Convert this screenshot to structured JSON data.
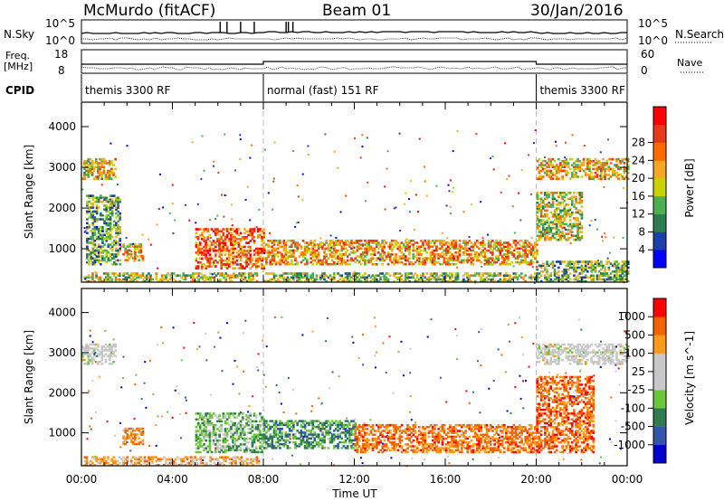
{
  "header": {
    "station": "McMurdo (fitACF)",
    "beam": "Beam 01",
    "date": "30/Jan/2016"
  },
  "aux": {
    "nsky_label": "N.Sky",
    "nsky_top": "10^5",
    "nsky_bottom": "10^0",
    "nsearch_label": "N.Search",
    "nsearch_top": "10^5",
    "nsearch_bottom": "10^0",
    "freq_label_top": "Freq.",
    "freq_label_unit": "[MHz]",
    "freq_top": "18",
    "freq_bottom": "8",
    "nave_label": "Nave",
    "nave_top": "60",
    "nave_bottom": "0",
    "cpid_label": "CPID",
    "cpid_segments": [
      {
        "label": "themis 3300 RF",
        "start": 0,
        "end": 8
      },
      {
        "label": "normal (fast) 151 RF",
        "start": 8,
        "end": 20
      },
      {
        "label": "themis 3300 RF",
        "start": 20,
        "end": 24
      }
    ]
  },
  "colors": {
    "power": [
      "#0000ff",
      "#1f3fa8",
      "#2e7d4f",
      "#4caf50",
      "#c8d200",
      "#f5a623",
      "#ff6a00",
      "#e8391a",
      "#ff0000"
    ],
    "velocity": [
      "#ff0000",
      "#f06400",
      "#ff9a1a",
      "#c8c8c8",
      "#c8c8c8",
      "#6cc63c",
      "#2e7d4f",
      "#3355aa",
      "#0000cc"
    ],
    "ground_scatter": "#bebebe"
  },
  "chart_data": [
    {
      "type": "heatmap",
      "panel": "power",
      "xlabel": "",
      "ylabel": "Slant Range [km]",
      "xlim": [
        0,
        24
      ],
      "ylim": [
        180,
        4600
      ],
      "yticks": [
        1000,
        2000,
        3000,
        4000
      ],
      "ytick_labels": [
        "1000",
        "2000",
        "3000",
        "4000"
      ],
      "colorbar": {
        "label": "Power [dB]",
        "range": [
          0,
          32
        ],
        "ticks": [
          4,
          8,
          12,
          16,
          20,
          24,
          28
        ],
        "tick_labels": [
          "4",
          "8",
          "12",
          "16",
          "20",
          "24",
          "28"
        ]
      },
      "regions": [
        {
          "t0": 0.0,
          "t1": 1.5,
          "r0": 2700,
          "r1": 3200,
          "level": 0.55
        },
        {
          "t0": 0.1,
          "t1": 7.8,
          "r0": 180,
          "r1": 380,
          "level": 0.5
        },
        {
          "t0": 0.2,
          "t1": 1.7,
          "r0": 600,
          "r1": 2300,
          "level": 0.35
        },
        {
          "t0": 1.8,
          "t1": 2.7,
          "r0": 700,
          "r1": 1100,
          "level": 0.55
        },
        {
          "t0": 5.0,
          "t1": 8.0,
          "r0": 500,
          "r1": 1500,
          "level": 0.75
        },
        {
          "t0": 8.0,
          "t1": 20.0,
          "r0": 600,
          "r1": 1200,
          "level": 0.65
        },
        {
          "t0": 8.0,
          "t1": 20.0,
          "r0": 180,
          "r1": 400,
          "level": 0.45
        },
        {
          "t0": 20.0,
          "t1": 24.0,
          "r0": 2700,
          "r1": 3200,
          "level": 0.6
        },
        {
          "t0": 20.0,
          "t1": 22.0,
          "r0": 1200,
          "r1": 2400,
          "level": 0.5
        },
        {
          "t0": 20.0,
          "t1": 24.0,
          "r0": 180,
          "r1": 700,
          "level": 0.4
        }
      ]
    },
    {
      "type": "heatmap",
      "panel": "velocity",
      "xlabel": "Time UT",
      "ylabel": "Slant Range [km]",
      "xlim": [
        0,
        24
      ],
      "ylim": [
        180,
        4600
      ],
      "xticks": [
        0,
        4,
        8,
        12,
        16,
        20,
        24
      ],
      "xtick_labels": [
        "00:00",
        "04:00",
        "08:00",
        "12:00",
        "16:00",
        "20:00",
        "00:00"
      ],
      "yticks": [
        1000,
        2000,
        3000,
        4000
      ],
      "ytick_labels": [
        "1000",
        "2000",
        "3000",
        "4000"
      ],
      "colorbar": {
        "label": "Velocity [m s^-1]",
        "ticks": [
          1000,
          500,
          100,
          25,
          -25,
          -100,
          -500,
          -1000
        ],
        "tick_labels": [
          "1000",
          "500",
          "100",
          "25",
          "-25",
          "-100",
          "-500",
          "-1000"
        ]
      },
      "regions": [
        {
          "t0": 0.0,
          "t1": 1.5,
          "r0": 2700,
          "r1": 3200,
          "level": 0.45
        },
        {
          "t0": 0.1,
          "t1": 7.8,
          "r0": 180,
          "r1": 380,
          "level": 0.3
        },
        {
          "t0": 1.8,
          "t1": 2.7,
          "r0": 700,
          "r1": 1100,
          "level": 0.25
        },
        {
          "t0": 5.0,
          "t1": 8.0,
          "r0": 500,
          "r1": 1500,
          "level": 0.62
        },
        {
          "t0": 8.0,
          "t1": 12.0,
          "r0": 600,
          "r1": 1300,
          "level": 0.7
        },
        {
          "t0": 12.0,
          "t1": 20.0,
          "r0": 500,
          "r1": 1200,
          "level": 0.2
        },
        {
          "t0": 20.0,
          "t1": 24.0,
          "r0": 2700,
          "r1": 3200,
          "level": 0.45
        },
        {
          "t0": 20.0,
          "t1": 22.5,
          "r0": 500,
          "r1": 2400,
          "level": 0.18
        }
      ]
    }
  ]
}
